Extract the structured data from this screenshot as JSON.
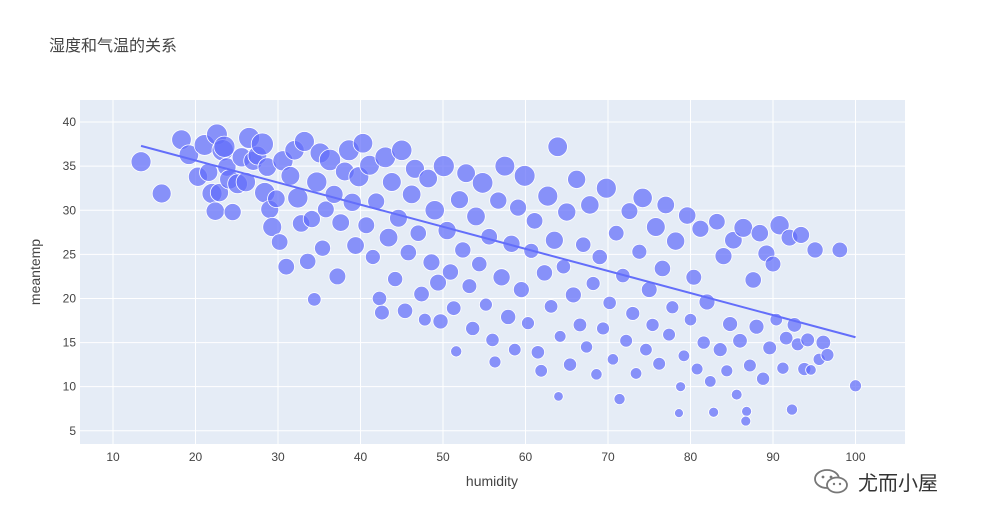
{
  "chart_data": {
    "type": "scatter",
    "title": "湿度和气温的关系",
    "xlabel": "humidity",
    "ylabel": "meantemp",
    "xlim": [
      6,
      106
    ],
    "ylim": [
      3.5,
      42.5
    ],
    "xticks": [
      10,
      20,
      30,
      40,
      50,
      60,
      70,
      80,
      90,
      100
    ],
    "yticks": [
      5,
      10,
      15,
      20,
      25,
      30,
      35,
      40
    ],
    "grid": true,
    "legend": "none",
    "marker_color": "#636efa",
    "trendline": {
      "x": [
        13.4,
        100
      ],
      "y": [
        37.3,
        15.6
      ]
    },
    "series": [
      {
        "points": [
          [
            13.4,
            35.5
          ],
          [
            15.9,
            31.9
          ],
          [
            18.3,
            38.0
          ],
          [
            19.2,
            36.3
          ],
          [
            20.3,
            33.8
          ],
          [
            21.1,
            37.4
          ],
          [
            21.6,
            34.3
          ],
          [
            22.0,
            31.9
          ],
          [
            22.4,
            29.9
          ],
          [
            22.6,
            38.6
          ],
          [
            22.9,
            32.0
          ],
          [
            23.3,
            36.8
          ],
          [
            23.5,
            37.2
          ],
          [
            23.8,
            34.9
          ],
          [
            24.1,
            33.5
          ],
          [
            24.5,
            29.8
          ],
          [
            25.1,
            33.0
          ],
          [
            25.6,
            36.0
          ],
          [
            26.1,
            33.2
          ],
          [
            26.5,
            38.2
          ],
          [
            27.0,
            35.6
          ],
          [
            27.5,
            36.2
          ],
          [
            28.1,
            37.5
          ],
          [
            28.4,
            32.0
          ],
          [
            28.7,
            34.9
          ],
          [
            29.0,
            30.1
          ],
          [
            29.3,
            28.1
          ],
          [
            29.8,
            31.3
          ],
          [
            30.2,
            26.4
          ],
          [
            30.6,
            35.6
          ],
          [
            31.0,
            23.6
          ],
          [
            31.5,
            33.9
          ],
          [
            32.0,
            36.8
          ],
          [
            32.4,
            31.4
          ],
          [
            32.8,
            28.5
          ],
          [
            33.2,
            37.8
          ],
          [
            33.6,
            24.2
          ],
          [
            34.1,
            29.0
          ],
          [
            34.4,
            19.9
          ],
          [
            34.7,
            33.2
          ],
          [
            35.1,
            36.5
          ],
          [
            35.4,
            25.7
          ],
          [
            35.8,
            30.1
          ],
          [
            36.3,
            35.7
          ],
          [
            36.8,
            31.8
          ],
          [
            37.2,
            22.5
          ],
          [
            37.6,
            28.6
          ],
          [
            38.1,
            34.4
          ],
          [
            38.6,
            36.8
          ],
          [
            39.0,
            30.9
          ],
          [
            39.4,
            26.0
          ],
          [
            39.8,
            33.8
          ],
          [
            40.3,
            37.6
          ],
          [
            40.7,
            28.3
          ],
          [
            41.1,
            35.1
          ],
          [
            41.5,
            24.7
          ],
          [
            41.9,
            31.0
          ],
          [
            42.3,
            20.0
          ],
          [
            42.6,
            18.4
          ],
          [
            43.0,
            36.0
          ],
          [
            43.4,
            26.9
          ],
          [
            43.8,
            33.2
          ],
          [
            44.2,
            22.2
          ],
          [
            44.6,
            29.1
          ],
          [
            45.0,
            36.8
          ],
          [
            45.4,
            18.6
          ],
          [
            45.8,
            25.2
          ],
          [
            46.2,
            31.8
          ],
          [
            46.6,
            34.7
          ],
          [
            47.0,
            27.4
          ],
          [
            47.4,
            20.5
          ],
          [
            47.8,
            17.6
          ],
          [
            48.2,
            33.6
          ],
          [
            48.6,
            24.1
          ],
          [
            49.0,
            30.0
          ],
          [
            49.4,
            21.8
          ],
          [
            49.7,
            17.4
          ],
          [
            50.1,
            35.0
          ],
          [
            50.5,
            27.7
          ],
          [
            50.9,
            23.0
          ],
          [
            51.3,
            18.9
          ],
          [
            51.6,
            14.0
          ],
          [
            52.0,
            31.2
          ],
          [
            52.4,
            25.5
          ],
          [
            52.8,
            34.2
          ],
          [
            53.2,
            21.4
          ],
          [
            53.6,
            16.6
          ],
          [
            54.0,
            29.3
          ],
          [
            54.4,
            23.9
          ],
          [
            54.8,
            33.1
          ],
          [
            55.2,
            19.3
          ],
          [
            55.6,
            27.0
          ],
          [
            56.0,
            15.3
          ],
          [
            56.3,
            12.8
          ],
          [
            56.7,
            31.1
          ],
          [
            57.1,
            22.4
          ],
          [
            57.5,
            35.0
          ],
          [
            57.9,
            17.9
          ],
          [
            58.3,
            26.2
          ],
          [
            58.7,
            14.2
          ],
          [
            59.1,
            30.3
          ],
          [
            59.5,
            21.0
          ],
          [
            59.9,
            33.9
          ],
          [
            60.3,
            17.2
          ],
          [
            60.7,
            25.4
          ],
          [
            61.1,
            28.8
          ],
          [
            61.5,
            13.9
          ],
          [
            61.9,
            11.8
          ],
          [
            62.3,
            22.9
          ],
          [
            62.7,
            31.6
          ],
          [
            63.1,
            19.1
          ],
          [
            63.5,
            26.6
          ],
          [
            63.9,
            37.2
          ],
          [
            64.2,
            15.7
          ],
          [
            64.0,
            8.9
          ],
          [
            64.6,
            23.6
          ],
          [
            65.0,
            29.8
          ],
          [
            65.4,
            12.5
          ],
          [
            65.8,
            20.4
          ],
          [
            66.2,
            33.5
          ],
          [
            66.6,
            17.0
          ],
          [
            67.0,
            26.1
          ],
          [
            67.4,
            14.5
          ],
          [
            67.8,
            30.6
          ],
          [
            68.2,
            21.7
          ],
          [
            68.6,
            11.4
          ],
          [
            69.0,
            24.7
          ],
          [
            69.4,
            16.6
          ],
          [
            69.8,
            32.5
          ],
          [
            70.2,
            19.5
          ],
          [
            70.6,
            13.1
          ],
          [
            71.0,
            27.4
          ],
          [
            71.4,
            8.6
          ],
          [
            71.8,
            22.6
          ],
          [
            72.2,
            15.2
          ],
          [
            72.6,
            29.9
          ],
          [
            73.0,
            18.3
          ],
          [
            73.4,
            11.5
          ],
          [
            73.8,
            25.3
          ],
          [
            74.2,
            31.4
          ],
          [
            74.6,
            14.2
          ],
          [
            75.0,
            21.0
          ],
          [
            75.4,
            17.0
          ],
          [
            75.8,
            28.1
          ],
          [
            76.2,
            12.6
          ],
          [
            76.6,
            23.4
          ],
          [
            77.0,
            30.6
          ],
          [
            77.4,
            15.9
          ],
          [
            77.8,
            19.0
          ],
          [
            78.2,
            26.5
          ],
          [
            78.6,
            7.0
          ],
          [
            78.8,
            10.0
          ],
          [
            79.2,
            13.5
          ],
          [
            79.6,
            29.4
          ],
          [
            80.0,
            17.6
          ],
          [
            80.4,
            22.4
          ],
          [
            80.8,
            12.0
          ],
          [
            81.2,
            27.9
          ],
          [
            81.6,
            15.0
          ],
          [
            82.0,
            19.6
          ],
          [
            82.4,
            10.6
          ],
          [
            82.8,
            7.1
          ],
          [
            83.2,
            28.7
          ],
          [
            83.6,
            14.2
          ],
          [
            84.0,
            24.8
          ],
          [
            84.4,
            11.8
          ],
          [
            84.8,
            17.1
          ],
          [
            85.2,
            26.6
          ],
          [
            85.6,
            9.1
          ],
          [
            86.0,
            15.2
          ],
          [
            86.4,
            28.0
          ],
          [
            86.8,
            7.2
          ],
          [
            86.7,
            6.1
          ],
          [
            87.2,
            12.4
          ],
          [
            87.6,
            22.1
          ],
          [
            88.0,
            16.8
          ],
          [
            88.4,
            27.4
          ],
          [
            88.8,
            10.9
          ],
          [
            89.2,
            25.1
          ],
          [
            89.6,
            14.4
          ],
          [
            90.0,
            23.9
          ],
          [
            90.4,
            17.6
          ],
          [
            90.8,
            28.3
          ],
          [
            91.2,
            12.1
          ],
          [
            91.6,
            15.5
          ],
          [
            92.0,
            26.9
          ],
          [
            92.3,
            7.4
          ],
          [
            92.6,
            17.0
          ],
          [
            93.0,
            14.8
          ],
          [
            93.4,
            27.2
          ],
          [
            93.8,
            12.0
          ],
          [
            94.2,
            15.3
          ],
          [
            94.6,
            11.9
          ],
          [
            95.1,
            25.5
          ],
          [
            95.6,
            13.1
          ],
          [
            96.1,
            15.0
          ],
          [
            96.6,
            13.6
          ],
          [
            98.1,
            25.5
          ],
          [
            100.0,
            10.1
          ]
        ]
      }
    ]
  },
  "watermark": {
    "text": "尤而小屋"
  }
}
